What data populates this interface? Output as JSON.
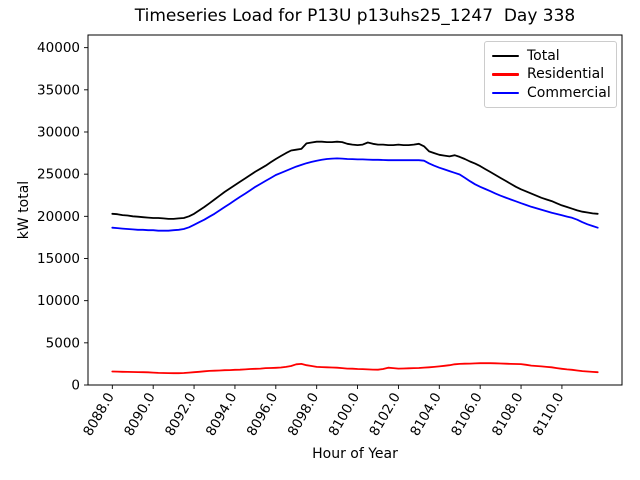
{
  "chart_data": {
    "type": "line",
    "title": "Timeseries Load for P13U p13uhs25_1247  Day 338",
    "xlabel": "Hour of Year",
    "ylabel": "kW total",
    "grid": false,
    "legend_position": "upper right",
    "xlim": [
      8086.81,
      8112.94
    ],
    "ylim": [
      0,
      41500
    ],
    "xtick_values": [
      8088,
      8090,
      8092,
      8094,
      8096,
      8098,
      8100,
      8102,
      8104,
      8106,
      8108,
      8110
    ],
    "xtick_labels": [
      "8088.0",
      "8090.0",
      "8092.0",
      "8094.0",
      "8096.0",
      "8098.0",
      "8100.0",
      "8102.0",
      "8104.0",
      "8106.0",
      "8108.0",
      "8110.0"
    ],
    "ytick_values": [
      0,
      5000,
      10000,
      15000,
      20000,
      25000,
      30000,
      35000,
      40000
    ],
    "ytick_labels": [
      "0",
      "5000",
      "10000",
      "15000",
      "20000",
      "25000",
      "30000",
      "35000",
      "40000"
    ],
    "x_start": 8088.0,
    "x_step": 0.25,
    "series": [
      {
        "name": "Total",
        "color": "#000000",
        "values": [
          20300,
          20250,
          20150,
          20100,
          20000,
          19950,
          19900,
          19850,
          19800,
          19800,
          19750,
          19700,
          19700,
          19750,
          19800,
          20000,
          20300,
          20700,
          21100,
          21550,
          22000,
          22450,
          22900,
          23300,
          23700,
          24100,
          24500,
          24900,
          25300,
          25650,
          26000,
          26400,
          26800,
          27150,
          27500,
          27800,
          27900,
          28000,
          28650,
          28750,
          28850,
          28850,
          28800,
          28800,
          28850,
          28800,
          28600,
          28500,
          28450,
          28500,
          28750,
          28600,
          28500,
          28500,
          28450,
          28450,
          28500,
          28450,
          28450,
          28500,
          28600,
          28300,
          27700,
          27500,
          27300,
          27200,
          27100,
          27250,
          27050,
          26800,
          26500,
          26250,
          25950,
          25600,
          25250,
          24900,
          24550,
          24200,
          23850,
          23500,
          23200,
          22950,
          22700,
          22450,
          22200,
          22000,
          21800,
          21550,
          21300,
          21100,
          20900,
          20700,
          20550,
          20450,
          20350,
          20300
        ]
      },
      {
        "name": "Residential",
        "color": "#ff0000",
        "values": [
          1600,
          1590,
          1570,
          1550,
          1540,
          1530,
          1520,
          1500,
          1470,
          1440,
          1420,
          1410,
          1400,
          1400,
          1420,
          1470,
          1520,
          1570,
          1620,
          1670,
          1700,
          1720,
          1750,
          1770,
          1800,
          1820,
          1850,
          1900,
          1920,
          1950,
          2000,
          2020,
          2040,
          2080,
          2150,
          2250,
          2450,
          2500,
          2350,
          2250,
          2150,
          2120,
          2100,
          2080,
          2050,
          2000,
          1950,
          1930,
          1900,
          1880,
          1850,
          1830,
          1820,
          1900,
          2050,
          2000,
          1950,
          1960,
          1980,
          2000,
          2020,
          2060,
          2100,
          2150,
          2200,
          2280,
          2350,
          2450,
          2500,
          2520,
          2540,
          2560,
          2580,
          2590,
          2590,
          2570,
          2550,
          2520,
          2500,
          2490,
          2480,
          2400,
          2300,
          2250,
          2200,
          2150,
          2100,
          2000,
          1920,
          1850,
          1800,
          1720,
          1650,
          1600,
          1550,
          1520
        ]
      },
      {
        "name": "Commercial",
        "color": "#0000ff",
        "values": [
          18650,
          18600,
          18550,
          18500,
          18450,
          18400,
          18400,
          18350,
          18350,
          18300,
          18300,
          18300,
          18350,
          18400,
          18500,
          18700,
          19000,
          19300,
          19600,
          19950,
          20300,
          20700,
          21100,
          21500,
          21900,
          22300,
          22700,
          23100,
          23500,
          23850,
          24200,
          24550,
          24900,
          25150,
          25400,
          25650,
          25900,
          26100,
          26300,
          26450,
          26600,
          26700,
          26800,
          26850,
          26870,
          26850,
          26800,
          26780,
          26750,
          26750,
          26730,
          26700,
          26700,
          26680,
          26650,
          26650,
          26650,
          26650,
          26650,
          26650,
          26650,
          26600,
          26280,
          26000,
          25760,
          25560,
          25360,
          25160,
          24960,
          24570,
          24170,
          23800,
          23500,
          23240,
          22980,
          22700,
          22450,
          22220,
          22000,
          21780,
          21560,
          21340,
          21130,
          20950,
          20770,
          20600,
          20420,
          20270,
          20120,
          19970,
          19820,
          19600,
          19300,
          19050,
          18850,
          18650
        ]
      }
    ]
  }
}
